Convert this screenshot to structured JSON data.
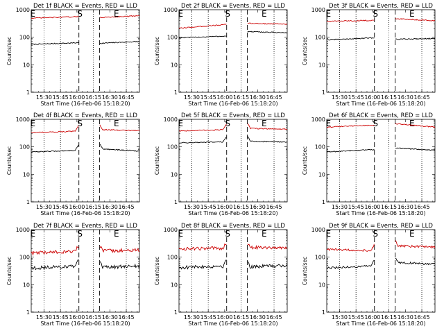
{
  "figure": {
    "xlabel": "Start Time (16-Feb-06 15:18:20)",
    "ylabel": "Counts/sec",
    "series_colors": {
      "events": "#000000",
      "lld": "#cc0000"
    }
  },
  "chart_data": [
    {
      "type": "line",
      "title": "Det 1f BLACK = Events, RED = LLD",
      "xlabel": "Start Time (16-Feb-06 15:18:20)",
      "ylabel": "Counts/sec",
      "x_unit": "hour",
      "xlim": [
        15.3056,
        16.95
      ],
      "ylim": [
        1,
        1000
      ],
      "yscale": "log",
      "xticks": [
        15.5,
        15.75,
        16.0,
        16.25,
        16.5,
        16.75
      ],
      "xtick_labels": [
        "15:30",
        "15:45",
        "16:00",
        "16:15",
        "16:30",
        "16:45"
      ],
      "yticks": [
        1,
        10,
        100,
        1000
      ],
      "ytick_labels": [
        "1",
        "10",
        "100",
        "1000"
      ],
      "dotted_lines_x": [
        15.5,
        15.75,
        16.25,
        16.75
      ],
      "dashed_lines_x": [
        16.03,
        16.345
      ],
      "marker_labels": [
        {
          "label": "E",
          "x": 15.33
        },
        {
          "label": "S",
          "x": 16.045
        },
        {
          "label": "E",
          "x": 16.6
        }
      ],
      "gap": [
        16.03,
        16.345
      ],
      "noise": 0.04,
      "spike": "none",
      "series": [
        {
          "name": "Events",
          "before": [
            55,
            63
          ],
          "after": [
            60,
            70
          ]
        },
        {
          "name": "LLD",
          "before": [
            490,
            560
          ],
          "after": [
            520,
            600
          ]
        }
      ]
    },
    {
      "type": "line",
      "title": "Det 2f BLACK = Events, RED = LLD",
      "xlabel": "Start Time (16-Feb-06 15:18:20)",
      "ylabel": "Counts/sec",
      "x_unit": "hour",
      "xlim": [
        15.3056,
        16.95
      ],
      "ylim": [
        1,
        1000
      ],
      "yscale": "log",
      "xticks": [
        15.5,
        15.75,
        16.0,
        16.25,
        16.5,
        16.75
      ],
      "xtick_labels": [
        "15:30",
        "15:45",
        "16:00",
        "16:15",
        "16:30",
        "16:45"
      ],
      "yticks": [
        1,
        10,
        100,
        1000
      ],
      "ytick_labels": [
        "1",
        "10",
        "100",
        "1000"
      ],
      "dotted_lines_x": [
        15.5,
        15.75,
        16.25,
        16.75
      ],
      "dashed_lines_x": [
        16.03,
        16.345
      ],
      "marker_labels": [
        {
          "label": "E",
          "x": 15.33
        },
        {
          "label": "S",
          "x": 16.045
        },
        {
          "label": "E",
          "x": 16.6
        }
      ],
      "gap": [
        16.03,
        16.345
      ],
      "noise": 0.04,
      "spike": "none",
      "series": [
        {
          "name": "Events",
          "before": [
            95,
            110
          ],
          "after": [
            160,
            145
          ]
        },
        {
          "name": "LLD",
          "before": [
            210,
            290
          ],
          "after": [
            320,
            300
          ]
        }
      ]
    },
    {
      "type": "line",
      "title": "Det 3f BLACK = Events, RED = LLD",
      "xlabel": "Start Time (16-Feb-06 15:18:20)",
      "ylabel": "Counts/sec",
      "x_unit": "hour",
      "xlim": [
        15.3056,
        16.95
      ],
      "ylim": [
        1,
        1000
      ],
      "yscale": "log",
      "xticks": [
        15.5,
        15.75,
        16.0,
        16.25,
        16.5,
        16.75
      ],
      "xtick_labels": [
        "15:30",
        "15:45",
        "16:00",
        "16:15",
        "16:30",
        "16:45"
      ],
      "yticks": [
        1,
        10,
        100,
        1000
      ],
      "ytick_labels": [
        "1",
        "10",
        "100",
        "1000"
      ],
      "dotted_lines_x": [
        15.5,
        15.75,
        16.25,
        16.75
      ],
      "dashed_lines_x": [
        16.03,
        16.345
      ],
      "marker_labels": [
        {
          "label": "E",
          "x": 15.33
        },
        {
          "label": "S",
          "x": 16.045
        },
        {
          "label": "E",
          "x": 16.6
        }
      ],
      "gap": [
        16.03,
        16.345
      ],
      "noise": 0.04,
      "spike": "none",
      "series": [
        {
          "name": "Events",
          "before": [
            80,
            95
          ],
          "after": [
            85,
            90
          ]
        },
        {
          "name": "LLD",
          "before": [
            380,
            410
          ],
          "after": [
            470,
            400
          ]
        }
      ]
    },
    {
      "type": "line",
      "title": "Det 4f BLACK = Events, RED = LLD",
      "xlabel": "Start Time (16-Feb-06 15:18:20)",
      "ylabel": "Counts/sec",
      "x_unit": "hour",
      "xlim": [
        15.3056,
        16.95
      ],
      "ylim": [
        1,
        1000
      ],
      "yscale": "log",
      "xticks": [
        15.5,
        15.75,
        16.0,
        16.25,
        16.5,
        16.75
      ],
      "xtick_labels": [
        "15:30",
        "15:45",
        "16:00",
        "16:15",
        "16:30",
        "16:45"
      ],
      "yticks": [
        1,
        10,
        100,
        1000
      ],
      "ytick_labels": [
        "1",
        "10",
        "100",
        "1000"
      ],
      "dotted_lines_x": [
        15.5,
        15.75,
        16.25,
        16.75
      ],
      "dashed_lines_x": [
        16.03,
        16.345
      ],
      "marker_labels": [
        {
          "label": "E",
          "x": 15.33
        },
        {
          "label": "S",
          "x": 16.045
        },
        {
          "label": "E",
          "x": 16.6
        }
      ],
      "gap": [
        16.03,
        16.345
      ],
      "noise": 0.04,
      "spike": "both",
      "series": [
        {
          "name": "Events",
          "before": [
            65,
            75
          ],
          "after": [
            85,
            70
          ]
        },
        {
          "name": "LLD",
          "before": [
            330,
            370
          ],
          "after": [
            420,
            390
          ]
        }
      ]
    },
    {
      "type": "line",
      "title": "Det 5f BLACK = Events, RED = LLD",
      "xlabel": "Start Time (16-Feb-06 15:18:20)",
      "ylabel": "Counts/sec",
      "x_unit": "hour",
      "xlim": [
        15.3056,
        16.95
      ],
      "ylim": [
        1,
        1000
      ],
      "yscale": "log",
      "xticks": [
        15.5,
        15.75,
        16.0,
        16.25,
        16.5,
        16.75
      ],
      "xtick_labels": [
        "15:30",
        "15:45",
        "16:00",
        "16:15",
        "16:30",
        "16:45"
      ],
      "yticks": [
        1,
        10,
        100,
        1000
      ],
      "ytick_labels": [
        "1",
        "10",
        "100",
        "1000"
      ],
      "dotted_lines_x": [
        15.5,
        15.75,
        16.25,
        16.75
      ],
      "dashed_lines_x": [
        16.03,
        16.345
      ],
      "marker_labels": [
        {
          "label": "E",
          "x": 15.33
        },
        {
          "label": "S",
          "x": 16.045
        },
        {
          "label": "E",
          "x": 16.6
        }
      ],
      "gap": [
        16.03,
        16.345
      ],
      "noise": 0.04,
      "spike": "both",
      "series": [
        {
          "name": "Events",
          "before": [
            140,
            150
          ],
          "after": [
            160,
            150
          ]
        },
        {
          "name": "LLD",
          "before": [
            380,
            420
          ],
          "after": [
            470,
            440
          ]
        }
      ]
    },
    {
      "type": "line",
      "title": "Det 6f BLACK = Events, RED = LLD",
      "xlabel": "Start Time (16-Feb-06 15:18:20)",
      "ylabel": "Counts/sec",
      "x_unit": "hour",
      "xlim": [
        15.3056,
        16.95
      ],
      "ylim": [
        1,
        1000
      ],
      "yscale": "log",
      "xticks": [
        15.5,
        15.75,
        16.0,
        16.25,
        16.5,
        16.75
      ],
      "xtick_labels": [
        "15:30",
        "15:45",
        "16:00",
        "16:15",
        "16:30",
        "16:45"
      ],
      "yticks": [
        1,
        10,
        100,
        1000
      ],
      "ytick_labels": [
        "1",
        "10",
        "100",
        "1000"
      ],
      "dotted_lines_x": [
        15.5,
        15.75,
        16.25,
        16.75
      ],
      "dashed_lines_x": [
        16.03,
        16.345
      ],
      "marker_labels": [
        {
          "label": "E",
          "x": 15.33
        },
        {
          "label": "S",
          "x": 16.045
        },
        {
          "label": "E",
          "x": 16.6
        }
      ],
      "gap": [
        16.03,
        16.345
      ],
      "noise": 0.04,
      "spike": "none",
      "series": [
        {
          "name": "Events",
          "before": [
            65,
            80
          ],
          "after": [
            90,
            75
          ]
        },
        {
          "name": "LLD",
          "before": [
            520,
            620
          ],
          "after": [
            680,
            520
          ]
        }
      ]
    },
    {
      "type": "line",
      "title": "Det 7f BLACK = Events, RED = LLD",
      "xlabel": "Start Time (16-Feb-06 15:18:20)",
      "ylabel": "Counts/sec",
      "x_unit": "hour",
      "xlim": [
        15.3056,
        16.95
      ],
      "ylim": [
        1,
        1000
      ],
      "yscale": "log",
      "xticks": [
        15.5,
        15.75,
        16.0,
        16.25,
        16.5,
        16.75
      ],
      "xtick_labels": [
        "15:30",
        "15:45",
        "16:00",
        "16:15",
        "16:30",
        "16:45"
      ],
      "yticks": [
        1,
        10,
        100,
        1000
      ],
      "ytick_labels": [
        "1",
        "10",
        "100",
        "1000"
      ],
      "dotted_lines_x": [
        15.5,
        15.75,
        16.25,
        16.75
      ],
      "dashed_lines_x": [
        16.03,
        16.345
      ],
      "marker_labels": [
        {
          "label": "E",
          "x": 15.33
        },
        {
          "label": "S",
          "x": 16.045
        },
        {
          "label": "E",
          "x": 16.6
        }
      ],
      "gap": [
        16.03,
        16.345
      ],
      "noise": 0.14,
      "spike": "both",
      "series": [
        {
          "name": "Events",
          "before": [
            40,
            48
          ],
          "after": [
            42,
            48
          ]
        },
        {
          "name": "LLD",
          "before": [
            140,
            165
          ],
          "after": [
            170,
            180
          ]
        }
      ]
    },
    {
      "type": "line",
      "title": "Det 8f BLACK = Events, RED = LLD",
      "xlabel": "Start Time (16-Feb-06 15:18:20)",
      "ylabel": "Counts/sec",
      "x_unit": "hour",
      "xlim": [
        15.3056,
        16.95
      ],
      "ylim": [
        1,
        1000
      ],
      "yscale": "log",
      "xticks": [
        15.5,
        15.75,
        16.0,
        16.25,
        16.5,
        16.75
      ],
      "xtick_labels": [
        "15:30",
        "15:45",
        "16:00",
        "16:15",
        "16:30",
        "16:45"
      ],
      "yticks": [
        1,
        10,
        100,
        1000
      ],
      "ytick_labels": [
        "1",
        "10",
        "100",
        "1000"
      ],
      "dotted_lines_x": [
        15.5,
        15.75,
        16.25,
        16.75
      ],
      "dashed_lines_x": [
        16.03,
        16.345
      ],
      "marker_labels": [
        {
          "label": "E",
          "x": 15.33
        },
        {
          "label": "S",
          "x": 16.045
        },
        {
          "label": "E",
          "x": 16.6
        }
      ],
      "gap": [
        16.03,
        16.345
      ],
      "noise": 0.14,
      "spike": "both",
      "series": [
        {
          "name": "Events",
          "before": [
            42,
            48
          ],
          "after": [
            45,
            50
          ]
        },
        {
          "name": "LLD",
          "before": [
            200,
            215
          ],
          "after": [
            230,
            220
          ]
        }
      ]
    },
    {
      "type": "line",
      "title": "Det 9f BLACK = Events, RED = LLD",
      "xlabel": "Start Time (16-Feb-06 15:18:20)",
      "ylabel": "Counts/sec",
      "x_unit": "hour",
      "xlim": [
        15.3056,
        16.95
      ],
      "ylim": [
        1,
        1000
      ],
      "yscale": "log",
      "xticks": [
        15.5,
        15.75,
        16.0,
        16.25,
        16.5,
        16.75
      ],
      "xtick_labels": [
        "15:30",
        "15:45",
        "16:00",
        "16:15",
        "16:30",
        "16:45"
      ],
      "yticks": [
        1,
        10,
        100,
        1000
      ],
      "ytick_labels": [
        "1",
        "10",
        "100",
        "1000"
      ],
      "dotted_lines_x": [
        15.5,
        15.75,
        16.25,
        16.75
      ],
      "dashed_lines_x": [
        16.03,
        16.345
      ],
      "marker_labels": [
        {
          "label": "E",
          "x": 15.33
        },
        {
          "label": "S",
          "x": 16.045
        },
        {
          "label": "E",
          "x": 16.6
        }
      ],
      "gap": [
        16.03,
        16.345
      ],
      "noise": 0.09,
      "spike": "both",
      "series": [
        {
          "name": "Events",
          "before": [
            40,
            48
          ],
          "after": [
            65,
            55
          ]
        },
        {
          "name": "LLD",
          "before": [
            190,
            175
          ],
          "after": [
            260,
            230
          ]
        }
      ]
    }
  ]
}
